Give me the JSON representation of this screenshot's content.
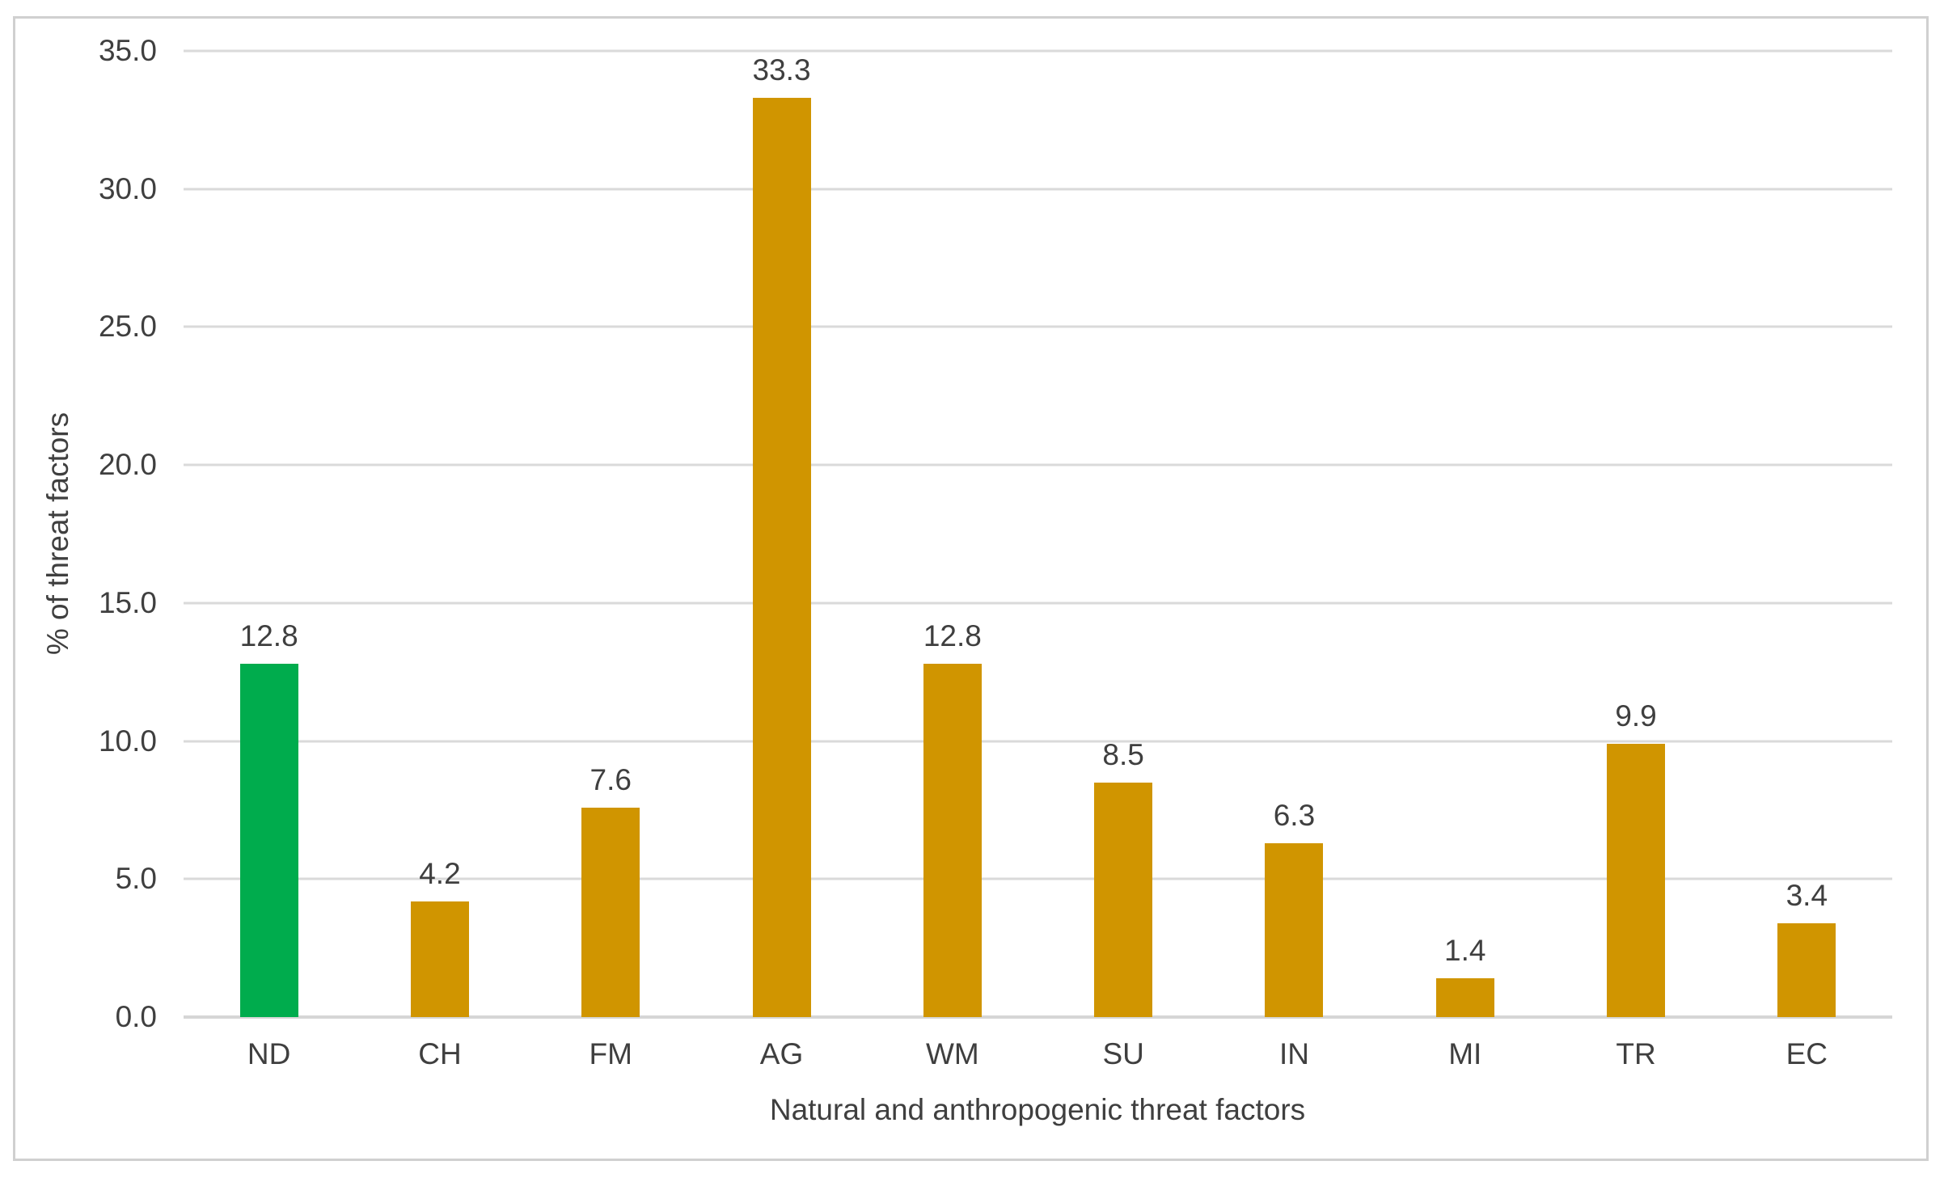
{
  "colors": {
    "bar_default": "#D09500",
    "bar_highlight": "#00AC4D",
    "gridline": "#DADADA",
    "axis_text": "#3F3F3F",
    "frame_border": "#D0D0D0",
    "background": "#FFFFFF"
  },
  "chart_data": {
    "type": "bar",
    "title": "",
    "xlabel": "Natural and anthropogenic threat factors",
    "ylabel": "% of threat factors",
    "categories": [
      "ND",
      "CH",
      "FM",
      "AG",
      "WM",
      "SU",
      "IN",
      "MI",
      "TR",
      "EC"
    ],
    "values": [
      12.8,
      4.2,
      7.6,
      33.3,
      12.8,
      8.5,
      6.3,
      1.4,
      9.9,
      3.4
    ],
    "value_labels": [
      "12.8",
      "4.2",
      "7.6",
      "33.3",
      "12.8",
      "8.5",
      "6.3",
      "1.4",
      "9.9",
      "3.4"
    ],
    "bar_colors": [
      "#00AC4D",
      "#D09500",
      "#D09500",
      "#D09500",
      "#D09500",
      "#D09500",
      "#D09500",
      "#D09500",
      "#D09500",
      "#D09500"
    ],
    "ylim": [
      0,
      35
    ],
    "yticks": [
      {
        "value": 0,
        "label": "0.0"
      },
      {
        "value": 5,
        "label": "5.0"
      },
      {
        "value": 10,
        "label": "10.0"
      },
      {
        "value": 15,
        "label": "15.0"
      },
      {
        "value": 20,
        "label": "20.0"
      },
      {
        "value": 25,
        "label": "25.0"
      },
      {
        "value": 30,
        "label": "30.0"
      },
      {
        "value": 35,
        "label": "35.0"
      }
    ],
    "grid": "horizontal",
    "legend": "none"
  }
}
